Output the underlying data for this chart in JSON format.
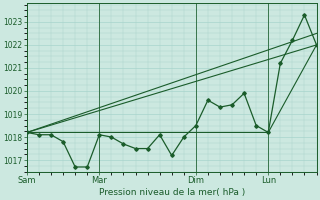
{
  "background_color": "#cce8e0",
  "grid_color": "#a8d4cc",
  "line_color": "#1a5c2a",
  "marker_color": "#1a5c2a",
  "xlabel": "Pression niveau de la mer( hPa )",
  "ylim": [
    1016.5,
    1023.8
  ],
  "yticks": [
    1017,
    1018,
    1019,
    1020,
    1021,
    1022,
    1023
  ],
  "day_labels": [
    "Sam",
    "Mar",
    "Dim",
    "Lun"
  ],
  "day_positions": [
    0,
    48,
    112,
    160
  ],
  "vline_positions": [
    0,
    48,
    112,
    160
  ],
  "xlim": [
    0,
    192
  ],
  "series1_x": [
    0,
    8,
    16,
    24,
    32,
    40,
    48,
    56,
    64,
    72,
    80,
    88,
    96,
    104,
    112,
    120,
    128,
    136,
    144,
    152,
    160,
    168,
    176,
    184,
    192
  ],
  "series1_y": [
    1018.2,
    1018.1,
    1018.1,
    1017.8,
    1016.7,
    1016.7,
    1018.1,
    1018.0,
    1017.7,
    1017.5,
    1017.5,
    1018.1,
    1017.2,
    1018.0,
    1018.5,
    1019.6,
    1019.3,
    1019.4,
    1019.9,
    1018.5,
    1018.2,
    1021.2,
    1022.2,
    1023.3,
    1022.0
  ],
  "trend1_x": [
    0,
    192
  ],
  "trend1_y": [
    1018.2,
    1022.0
  ],
  "trend2_x": [
    0,
    192
  ],
  "trend2_y": [
    1018.2,
    1022.5
  ],
  "trend3_x": [
    0,
    160,
    192
  ],
  "trend3_y": [
    1018.2,
    1018.2,
    1022.0
  ],
  "figsize": [
    3.2,
    2.0
  ],
  "dpi": 100
}
